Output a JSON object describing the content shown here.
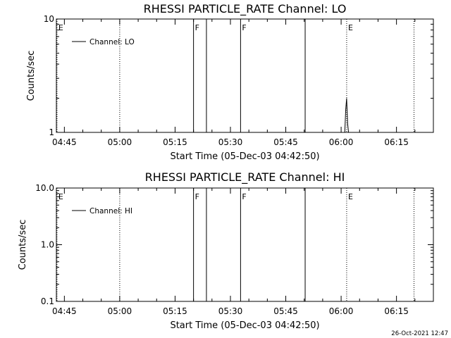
{
  "chart_data": [
    {
      "type": "line",
      "title": "RHESSI PARTICLE_RATE Channel: LO",
      "xlabel": "Start Time (05-Dec-03 04:42:50)",
      "ylabel": "Counts/sec",
      "y_scale": "log",
      "ylim": [
        1,
        10
      ],
      "y_ticks": [
        1,
        10
      ],
      "y_tick_labels": [
        "1",
        "10"
      ],
      "x_tick_labels": [
        "04:45",
        "05:00",
        "05:15",
        "05:30",
        "05:45",
        "06:00",
        "06:15"
      ],
      "legend": {
        "position": "top-left",
        "entries": [
          "Channel: LO"
        ]
      },
      "series": [
        {
          "name": "Channel: LO",
          "points": [
            [
              "06:01:00",
              1
            ],
            [
              "06:01:15",
              1.6
            ],
            [
              "06:01:30",
              2.0
            ],
            [
              "06:01:45",
              1.2
            ],
            [
              "06:02:00",
              1
            ]
          ]
        }
      ],
      "markers": [
        {
          "time": "04:43:00",
          "style": "dotted",
          "label": "E"
        },
        {
          "time": "05:00:00",
          "style": "dotted",
          "label": ""
        },
        {
          "time": "05:20:00",
          "style": "solid",
          "label": "F"
        },
        {
          "time": "05:23:30",
          "style": "solid",
          "label": ""
        },
        {
          "time": "05:32:45",
          "style": "solid",
          "label": "F"
        },
        {
          "time": "05:50:15",
          "style": "solid",
          "label": ""
        },
        {
          "time": "06:01:30",
          "style": "dotted",
          "label": "E"
        },
        {
          "time": "06:19:45",
          "style": "dotted",
          "label": ""
        }
      ]
    },
    {
      "type": "line",
      "title": "RHESSI PARTICLE_RATE Channel: HI",
      "xlabel": "Start Time (05-Dec-03 04:42:50)",
      "ylabel": "Counts/sec",
      "y_scale": "log",
      "ylim": [
        0.1,
        10
      ],
      "y_ticks": [
        0.1,
        1,
        10
      ],
      "y_tick_labels": [
        "0.1",
        "1.0",
        "10.0"
      ],
      "x_tick_labels": [
        "04:45",
        "05:00",
        "05:15",
        "05:30",
        "05:45",
        "06:00",
        "06:15"
      ],
      "legend": {
        "position": "top-left",
        "entries": [
          "Channel: HI"
        ]
      },
      "series": [
        {
          "name": "Channel: HI",
          "points": []
        }
      ],
      "markers": [
        {
          "time": "04:43:00",
          "style": "dotted",
          "label": "E"
        },
        {
          "time": "05:00:00",
          "style": "dotted",
          "label": ""
        },
        {
          "time": "05:20:00",
          "style": "solid",
          "label": "F"
        },
        {
          "time": "05:23:30",
          "style": "solid",
          "label": ""
        },
        {
          "time": "05:32:45",
          "style": "solid",
          "label": "F"
        },
        {
          "time": "05:50:15",
          "style": "solid",
          "label": ""
        },
        {
          "time": "06:01:30",
          "style": "dotted",
          "label": "E"
        },
        {
          "time": "06:19:45",
          "style": "dotted",
          "label": ""
        }
      ]
    }
  ],
  "footer": {
    "timestamp": "26-Oct-2021 12:47"
  }
}
